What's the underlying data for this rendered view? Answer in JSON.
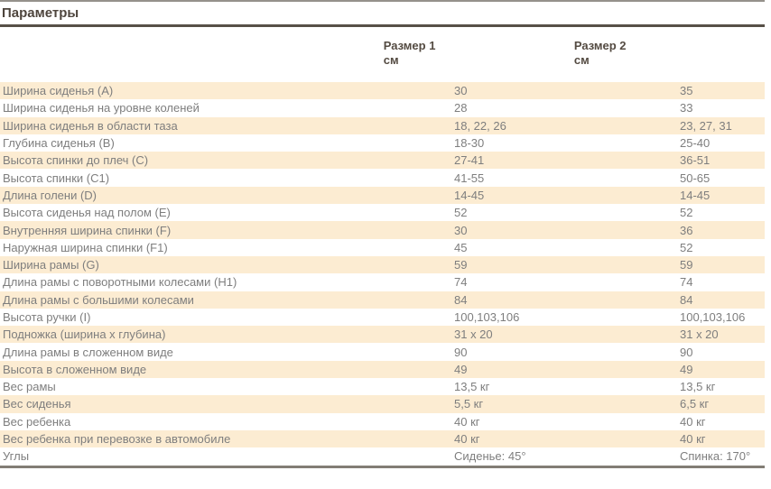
{
  "page_title": "Параметры",
  "table": {
    "columns": [
      {
        "label": "Размер 1",
        "unit": "см"
      },
      {
        "label": "Размер 2",
        "unit": "см"
      }
    ],
    "rows": [
      {
        "name": "Ширина сиденья (А)",
        "size1": "30",
        "size2": "35"
      },
      {
        "name": "Ширина сиденья на уровне коленей",
        "size1": "28",
        "size2": "33"
      },
      {
        "name": "Ширина сиденья в области таза",
        "size1": "18, 22, 26",
        "size2": "23, 27, 31"
      },
      {
        "name": "Глубина сиденья (В)",
        "size1": "18-30",
        "size2": "25-40"
      },
      {
        "name": "Высота спинки до плеч (С)",
        "size1": "27-41",
        "size2": "36-51"
      },
      {
        "name": "Высота спинки (С1)",
        "size1": "41-55",
        "size2": "50-65"
      },
      {
        "name": "Длина голени (D)",
        "size1": "14-45",
        "size2": "14-45"
      },
      {
        "name": "Высота сиденья над полом (Е)",
        "size1": "52",
        "size2": "52"
      },
      {
        "name": "Внутренняя ширина спинки (F)",
        "size1": "30",
        "size2": "36"
      },
      {
        "name": "Наружная ширина спинки (F1)",
        "size1": "45",
        "size2": "52"
      },
      {
        "name": "Ширина рамы (G)",
        "size1": "59",
        "size2": "59"
      },
      {
        "name": "Длина рамы с поворотными колесами (Н1)",
        "size1": "74",
        "size2": "74"
      },
      {
        "name": "Длина рамы с большими колесами",
        "size1": "84",
        "size2": "84"
      },
      {
        "name": "Высота ручки (I)",
        "size1": "100,103,106",
        "size2": "100,103,106"
      },
      {
        "name": "Подножка (ширина х глубина)",
        "size1": "31 x 20",
        "size2": "31 x 20"
      },
      {
        "name": "Длина рамы в сложенном виде",
        "size1": "90",
        "size2": "90"
      },
      {
        "name": "Высота в сложенном виде",
        "size1": "49",
        "size2": "49"
      },
      {
        "name": "Вес рамы",
        "size1": "13,5 кг",
        "size2": "13,5 кг"
      },
      {
        "name": "Вес сиденья",
        "size1": "5,5 кг",
        "size2": "6,5 кг"
      },
      {
        "name": "Вес ребенка",
        "size1": "40 кг",
        "size2": "40 кг"
      },
      {
        "name": "Вес ребенка при перевозке в автомобиле",
        "size1": "40 кг",
        "size2": "40 кг"
      },
      {
        "name": "Углы",
        "size1": "Сиденье: 45°",
        "size2": "Спинка: 170°"
      }
    ]
  },
  "colors": {
    "row_highlight": "#fcecd2",
    "row_text": "#7e7e7e",
    "heading_text": "#544b42",
    "title_rule": "#575047",
    "top_rule": "#95918b",
    "bottom_rule": "#827d75"
  }
}
